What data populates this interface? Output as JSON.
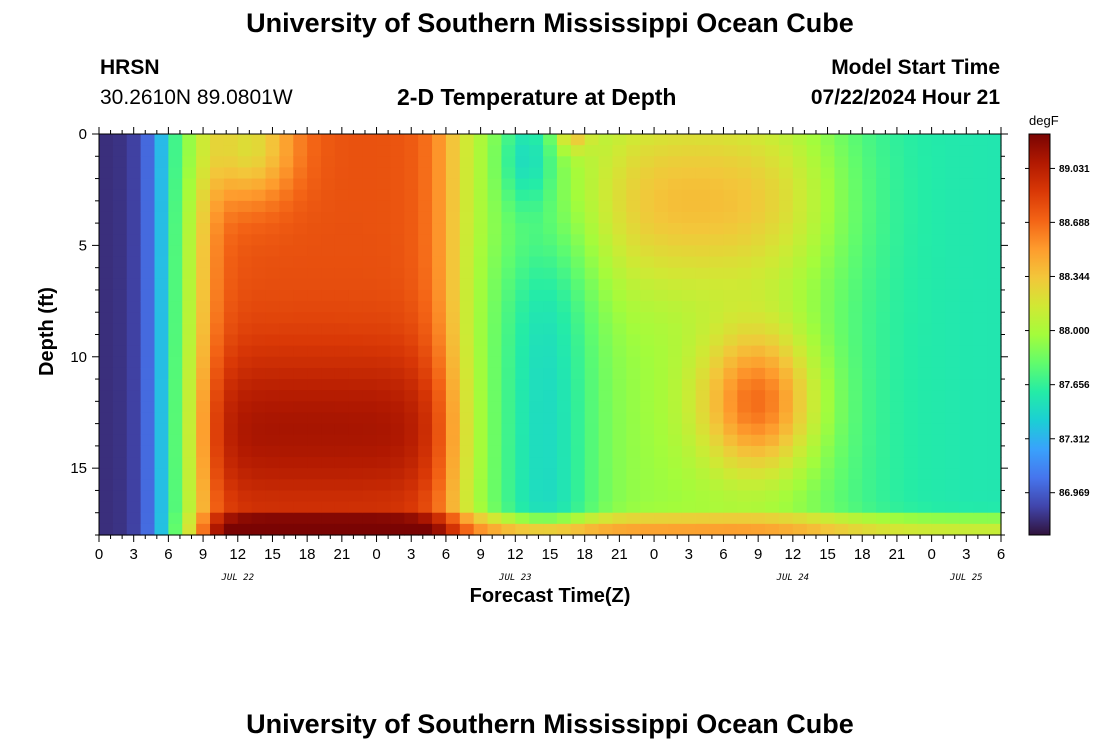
{
  "header": {
    "title_top": "University of Southern Mississippi Ocean Cube",
    "title_bottom": "University of Southern Mississippi Ocean Cube",
    "station_id": "HRSN",
    "station_coords": "30.2610N  89.0801W",
    "plot_title": "2-D Temperature at Depth",
    "model_start_label": "Model Start Time",
    "model_start_value": "07/22/2024 Hour 21"
  },
  "chart_data": {
    "type": "heatmap",
    "title": "2-D Temperature at Depth",
    "xlabel": "Forecast Time(Z)",
    "ylabel": "Depth (ft)",
    "x_tick_labels": [
      "0",
      "3",
      "6",
      "9",
      "12",
      "15",
      "18",
      "21",
      "0",
      "3",
      "6",
      "9",
      "12",
      "15",
      "18",
      "21",
      "0",
      "3",
      "6",
      "9",
      "12",
      "15",
      "18",
      "21",
      "0",
      "3",
      "6"
    ],
    "x_hours_range": [
      0,
      78
    ],
    "date_labels": [
      {
        "text": "JUL 22",
        "hour": 12
      },
      {
        "text": "JUL 23",
        "hour": 36
      },
      {
        "text": "JUL 24",
        "hour": 60
      },
      {
        "text": "JUL 25",
        "hour": 75
      }
    ],
    "y_tick_labels": [
      "0",
      "5",
      "10",
      "15"
    ],
    "y_ticks": [
      0,
      5,
      10,
      15
    ],
    "ylim": [
      0,
      18
    ],
    "colorbar": {
      "unit": "degF",
      "labels": [
        "89.031",
        "88.688",
        "88.344",
        "88.000",
        "87.656",
        "87.312",
        "86.969"
      ],
      "values": [
        89.031,
        88.688,
        88.344,
        88.0,
        87.656,
        87.312,
        86.969
      ],
      "range": [
        86.7,
        89.25
      ],
      "colors": [
        "#30123b",
        "#4145ab",
        "#4675ed",
        "#39a2fc",
        "#1bcfd4",
        "#24eca6",
        "#61fc6c",
        "#a4fc3b",
        "#d1e834",
        "#f3c63a",
        "#fe9b2d",
        "#f36315",
        "#d93806",
        "#b11901",
        "#7a0403"
      ]
    },
    "grid": false
  }
}
